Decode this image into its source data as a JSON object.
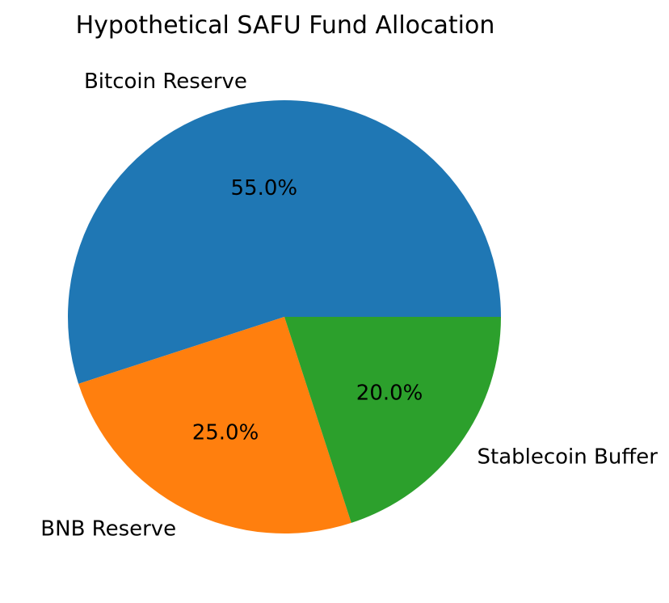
{
  "page": {
    "background": "#ffffff",
    "text_color": "#000000"
  },
  "chart_data": {
    "type": "pie",
    "title": "Hypothetical SAFU Fund Allocation",
    "legend_position": "none",
    "start_angle_deg": 0,
    "direction": "counterclockwise",
    "label_distance": 1.1,
    "pct_distance": 0.6,
    "categories": [
      "Bitcoin Reserve",
      "BNB Reserve",
      "Stablecoin Buffer"
    ],
    "values": [
      55.0,
      25.0,
      20.0
    ],
    "slices": [
      {
        "label": "Bitcoin Reserve",
        "value": 55.0,
        "pct_label": "55.0%",
        "color": "#1f77b4"
      },
      {
        "label": "BNB Reserve",
        "value": 25.0,
        "pct_label": "25.0%",
        "color": "#ff7f0e"
      },
      {
        "label": "Stablecoin Buffer",
        "value": 20.0,
        "pct_label": "20.0%",
        "color": "#2ca02c"
      }
    ]
  }
}
